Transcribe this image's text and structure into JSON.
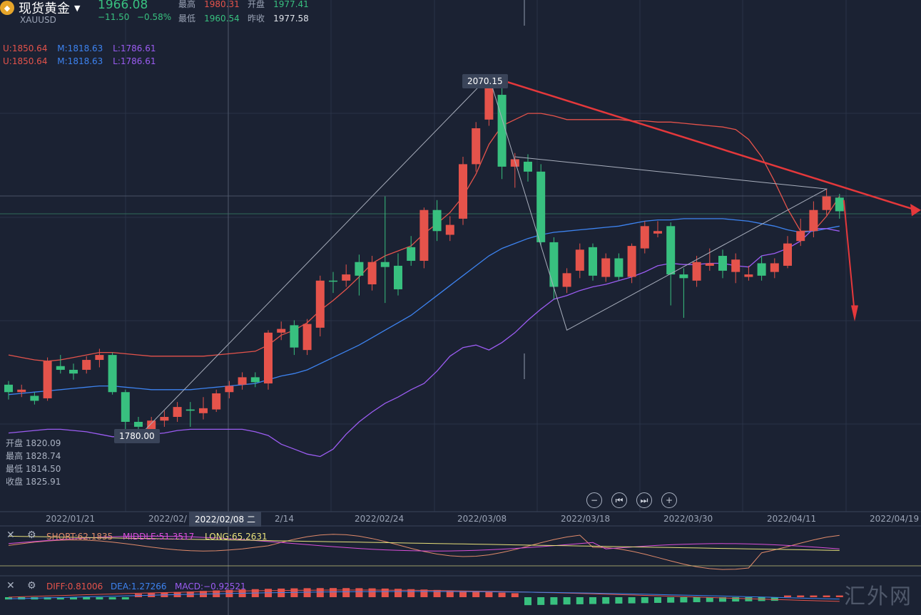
{
  "header": {
    "title": "现货黄金",
    "symbol": "XAUUSD",
    "price": "1966.08",
    "change": "−11.50",
    "change_pct": "−0.58%",
    "high_label": "最高",
    "high_value": "1980.31",
    "open_label": "开盘",
    "open_value": "1977.41",
    "low_label": "最低",
    "low_value": "1960.54",
    "prev_label": "昨收",
    "prev_value": "1977.58"
  },
  "boll": {
    "u": "U:1850.64",
    "m": "M:1818.63",
    "l": "L:1786.61"
  },
  "hover_info": {
    "open": "开盘 1820.09",
    "high": "最高 1828.74",
    "low": "最低 1814.50",
    "close": "收盘 1825.91"
  },
  "tags": {
    "high_tag": "2070.15",
    "low_tag": "1780.00"
  },
  "x_axis": {
    "cursor_date": "2022/02/08 二",
    "labels": [
      "2022/01/21",
      "2022/02/",
      "2/14",
      "2022/02/24",
      "2022/03/08",
      "2022/03/18",
      "2022/03/30",
      "2022/04/11",
      "2022/04/19"
    ]
  },
  "ma_indicator": {
    "short": "SHORT:62.1835",
    "middle": "MIDDLE:51.3517",
    "long": "LONG:65.2631"
  },
  "macd_indicator": {
    "diff": "DIFF:0.81006",
    "dea": "DEA:1.27266",
    "macd": "MACD:−0.92521"
  },
  "watermark": "汇外网",
  "colors": {
    "bg": "#1b2233",
    "up": "#e5534b",
    "down": "#38c07f",
    "upper": "#e5534b",
    "middle": "#3d83f0",
    "lower": "#9b5cf2"
  },
  "chart_data": {
    "type": "candlestick",
    "ylim_price": [
      1735,
      2115
    ],
    "candles": [
      {
        "o": 1820,
        "c": 1826,
        "h": 1829,
        "l": 1814,
        "dir": "down"
      },
      {
        "o": 1820,
        "c": 1822,
        "h": 1826,
        "l": 1816,
        "dir": "up"
      },
      {
        "o": 1817,
        "c": 1813,
        "h": 1820,
        "l": 1810,
        "dir": "down"
      },
      {
        "o": 1815,
        "c": 1845,
        "h": 1848,
        "l": 1813,
        "dir": "up"
      },
      {
        "o": 1841,
        "c": 1838,
        "h": 1850,
        "l": 1835,
        "dir": "down"
      },
      {
        "o": 1838,
        "c": 1835,
        "h": 1843,
        "l": 1830,
        "dir": "down"
      },
      {
        "o": 1838,
        "c": 1846,
        "h": 1849,
        "l": 1835,
        "dir": "up"
      },
      {
        "o": 1846,
        "c": 1850,
        "h": 1855,
        "l": 1840,
        "dir": "up"
      },
      {
        "o": 1850,
        "c": 1820,
        "h": 1852,
        "l": 1818,
        "dir": "down"
      },
      {
        "o": 1820,
        "c": 1796,
        "h": 1822,
        "l": 1790,
        "dir": "down"
      },
      {
        "o": 1796,
        "c": 1792,
        "h": 1800,
        "l": 1783,
        "dir": "down"
      },
      {
        "o": 1790,
        "c": 1797,
        "h": 1800,
        "l": 1786,
        "dir": "up"
      },
      {
        "o": 1797,
        "c": 1800,
        "h": 1805,
        "l": 1792,
        "dir": "up"
      },
      {
        "o": 1800,
        "c": 1808,
        "h": 1812,
        "l": 1796,
        "dir": "up"
      },
      {
        "o": 1806,
        "c": 1805,
        "h": 1812,
        "l": 1792,
        "dir": "down"
      },
      {
        "o": 1803,
        "c": 1807,
        "h": 1816,
        "l": 1798,
        "dir": "up"
      },
      {
        "o": 1806,
        "c": 1819,
        "h": 1822,
        "l": 1804,
        "dir": "up"
      },
      {
        "o": 1820,
        "c": 1825,
        "h": 1829,
        "l": 1815,
        "dir": "up"
      },
      {
        "o": 1826,
        "c": 1832,
        "h": 1836,
        "l": 1822,
        "dir": "up"
      },
      {
        "o": 1832,
        "c": 1828,
        "h": 1836,
        "l": 1824,
        "dir": "down"
      },
      {
        "o": 1827,
        "c": 1868,
        "h": 1870,
        "l": 1822,
        "dir": "up"
      },
      {
        "o": 1868,
        "c": 1871,
        "h": 1877,
        "l": 1862,
        "dir": "up"
      },
      {
        "o": 1874,
        "c": 1856,
        "h": 1878,
        "l": 1850,
        "dir": "down"
      },
      {
        "o": 1854,
        "c": 1875,
        "h": 1879,
        "l": 1850,
        "dir": "up"
      },
      {
        "o": 1872,
        "c": 1910,
        "h": 1914,
        "l": 1865,
        "dir": "up"
      },
      {
        "o": 1910,
        "c": 1910,
        "h": 1917,
        "l": 1900,
        "dir": "down"
      },
      {
        "o": 1910,
        "c": 1915,
        "h": 1923,
        "l": 1905,
        "dir": "up"
      },
      {
        "o": 1925,
        "c": 1914,
        "h": 1931,
        "l": 1898,
        "dir": "down"
      },
      {
        "o": 1907,
        "c": 1925,
        "h": 1930,
        "l": 1902,
        "dir": "up"
      },
      {
        "o": 1925,
        "c": 1921,
        "h": 1978,
        "l": 1892,
        "dir": "down"
      },
      {
        "o": 1922,
        "c": 1903,
        "h": 1932,
        "l": 1898,
        "dir": "down"
      },
      {
        "o": 1926,
        "c": 1937,
        "h": 1946,
        "l": 1922,
        "dir": "down"
      },
      {
        "o": 1926,
        "c": 1967,
        "h": 1969,
        "l": 1920,
        "dir": "up"
      },
      {
        "o": 1967,
        "c": 1950,
        "h": 1975,
        "l": 1942,
        "dir": "down"
      },
      {
        "o": 1947,
        "c": 1955,
        "h": 1962,
        "l": 1942,
        "dir": "up"
      },
      {
        "o": 1960,
        "c": 2004,
        "h": 2010,
        "l": 1955,
        "dir": "up"
      },
      {
        "o": 2004,
        "c": 2033,
        "h": 2038,
        "l": 1998,
        "dir": "up"
      },
      {
        "o": 2040,
        "c": 2070,
        "h": 2075,
        "l": 2035,
        "dir": "up"
      },
      {
        "o": 2060,
        "c": 2002,
        "h": 2070,
        "l": 1992,
        "dir": "down"
      },
      {
        "o": 2002,
        "c": 2008,
        "h": 2013,
        "l": 1985,
        "dir": "up"
      },
      {
        "o": 2006,
        "c": 1998,
        "h": 2012,
        "l": 1990,
        "dir": "down"
      },
      {
        "o": 1998,
        "c": 1941,
        "h": 2004,
        "l": 1938,
        "dir": "down"
      },
      {
        "o": 1941,
        "c": 1905,
        "h": 1945,
        "l": 1895,
        "dir": "down"
      },
      {
        "o": 1905,
        "c": 1916,
        "h": 1920,
        "l": 1900,
        "dir": "up"
      },
      {
        "o": 1918,
        "c": 1935,
        "h": 1940,
        "l": 1912,
        "dir": "up"
      },
      {
        "o": 1937,
        "c": 1914,
        "h": 1940,
        "l": 1910,
        "dir": "down"
      },
      {
        "o": 1913,
        "c": 1928,
        "h": 1932,
        "l": 1909,
        "dir": "up"
      },
      {
        "o": 1928,
        "c": 1913,
        "h": 1932,
        "l": 1910,
        "dir": "down"
      },
      {
        "o": 1913,
        "c": 1938,
        "h": 1940,
        "l": 1908,
        "dir": "up"
      },
      {
        "o": 1936,
        "c": 1954,
        "h": 1958,
        "l": 1932,
        "dir": "up"
      },
      {
        "o": 1950,
        "c": 1948,
        "h": 1958,
        "l": 1945,
        "dir": "up"
      },
      {
        "o": 1954,
        "c": 1915,
        "h": 1957,
        "l": 1890,
        "dir": "down"
      },
      {
        "o": 1915,
        "c": 1912,
        "h": 1920,
        "l": 1880,
        "dir": "down"
      },
      {
        "o": 1910,
        "c": 1925,
        "h": 1930,
        "l": 1905,
        "dir": "up"
      },
      {
        "o": 1922,
        "c": 1924,
        "h": 1936,
        "l": 1918,
        "dir": "up"
      },
      {
        "o": 1918,
        "c": 1930,
        "h": 1935,
        "l": 1912,
        "dir": "down"
      },
      {
        "o": 1927,
        "c": 1917,
        "h": 1932,
        "l": 1908,
        "dir": "up"
      },
      {
        "o": 1913,
        "c": 1915,
        "h": 1922,
        "l": 1910,
        "dir": "up"
      },
      {
        "o": 1924,
        "c": 1914,
        "h": 1930,
        "l": 1910,
        "dir": "down"
      },
      {
        "o": 1917,
        "c": 1924,
        "h": 1928,
        "l": 1912,
        "dir": "up"
      },
      {
        "o": 1922,
        "c": 1940,
        "h": 1946,
        "l": 1920,
        "dir": "up"
      },
      {
        "o": 1942,
        "c": 1950,
        "h": 1960,
        "l": 1938,
        "dir": "up"
      },
      {
        "o": 1950,
        "c": 1967,
        "h": 1974,
        "l": 1945,
        "dir": "up"
      },
      {
        "o": 1967,
        "c": 1978,
        "h": 1984,
        "l": 1963,
        "dir": "up"
      },
      {
        "o": 1977,
        "c": 1966,
        "h": 1980,
        "l": 1960,
        "dir": "down"
      }
    ],
    "boll_upper": [
      1850,
      1848,
      1846,
      1845,
      1846,
      1848,
      1850,
      1852,
      1852,
      1851,
      1850,
      1849,
      1849,
      1849,
      1849,
      1849,
      1850,
      1851,
      1852,
      1853,
      1858,
      1866,
      1870,
      1876,
      1886,
      1894,
      1903,
      1913,
      1924,
      1930,
      1934,
      1938,
      1948,
      1956,
      1965,
      1978,
      1996,
      2020,
      2035,
      2040,
      2045,
      2045,
      2043,
      2040,
      2040,
      2040,
      2040,
      2040,
      2039,
      2039,
      2038,
      2038,
      2037,
      2036,
      2035,
      2034,
      2032,
      2024,
      2010,
      1990,
      1968,
      1950,
      1950,
      1962,
      1978
    ],
    "boll_middle": [
      1818,
      1819,
      1820,
      1821,
      1822,
      1823,
      1824,
      1825,
      1825,
      1824,
      1823,
      1822,
      1822,
      1822,
      1822,
      1823,
      1824,
      1825,
      1826,
      1827,
      1830,
      1833,
      1835,
      1838,
      1843,
      1848,
      1853,
      1858,
      1864,
      1870,
      1876,
      1882,
      1890,
      1898,
      1906,
      1914,
      1922,
      1930,
      1936,
      1940,
      1944,
      1947,
      1949,
      1950,
      1951,
      1952,
      1953,
      1954,
      1956,
      1958,
      1959,
      1959,
      1960,
      1960,
      1960,
      1960,
      1959,
      1958,
      1956,
      1954,
      1951,
      1949,
      1950,
      1952,
      1954
    ],
    "boll_lower": [
      1787,
      1788,
      1789,
      1790,
      1790,
      1789,
      1788,
      1786,
      1784,
      1784,
      1786,
      1786,
      1787,
      1789,
      1790,
      1790,
      1790,
      1790,
      1790,
      1788,
      1785,
      1778,
      1774,
      1770,
      1768,
      1774,
      1786,
      1796,
      1804,
      1811,
      1816,
      1822,
      1827,
      1837,
      1849,
      1856,
      1858,
      1854,
      1860,
      1868,
      1878,
      1887,
      1895,
      1898,
      1902,
      1905,
      1907,
      1910,
      1913,
      1917,
      1922,
      1924,
      1923,
      1923,
      1924,
      1924,
      1922,
      1921,
      1930,
      1932,
      1936,
      1942,
      1952,
      1952,
      1950
    ]
  }
}
